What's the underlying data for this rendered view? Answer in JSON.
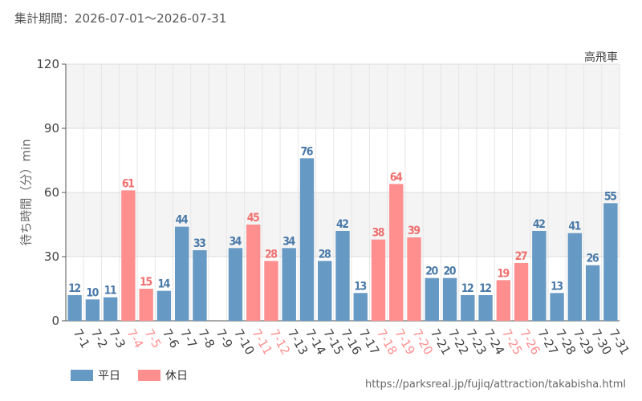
{
  "header": {
    "period": "集計期間：2026-07-01〜2026-07-31"
  },
  "footer": {
    "source": "https://parksreal.jp/fujiq/attraction/takabisha.html"
  },
  "legend": [
    {
      "label": "平日",
      "color": "#6699c4"
    },
    {
      "label": "休日",
      "color": "#ff8f8f"
    }
  ],
  "colors": {
    "weekday": "#6699c4",
    "holiday": "#ff8f8f",
    "weekday_label": "#4a7aa8",
    "holiday_label": "#f07070"
  },
  "chart_data": {
    "type": "bar",
    "series_name": "高飛車",
    "ylabel": "待ち時間（分）min",
    "ylim": [
      0,
      120
    ],
    "yticks": [
      0,
      30,
      60,
      90,
      120
    ],
    "grid": true,
    "legend_position": "bottom-left",
    "categories": [
      "7-1",
      "7-2",
      "7-3",
      "7-4",
      "7-5",
      "7-6",
      "7-7",
      "7-8",
      "7-9",
      "7-10",
      "7-11",
      "7-12",
      "7-13",
      "7-14",
      "7-15",
      "7-16",
      "7-17",
      "7-18",
      "7-19",
      "7-20",
      "7-21",
      "7-22",
      "7-23",
      "7-24",
      "7-25",
      "7-26",
      "7-27",
      "7-28",
      "7-29",
      "7-30",
      "7-31"
    ],
    "values": [
      12,
      10,
      11,
      61,
      15,
      14,
      44,
      33,
      null,
      34,
      45,
      28,
      34,
      76,
      28,
      42,
      13,
      38,
      64,
      39,
      20,
      20,
      12,
      12,
      19,
      27,
      42,
      13,
      41,
      26,
      55
    ],
    "day_type": [
      "平日",
      "平日",
      "平日",
      "休日",
      "休日",
      "平日",
      "平日",
      "平日",
      "平日",
      "平日",
      "休日",
      "休日",
      "平日",
      "平日",
      "平日",
      "平日",
      "平日",
      "休日",
      "休日",
      "休日",
      "平日",
      "平日",
      "平日",
      "平日",
      "休日",
      "休日",
      "平日",
      "平日",
      "平日",
      "平日",
      "平日"
    ]
  }
}
